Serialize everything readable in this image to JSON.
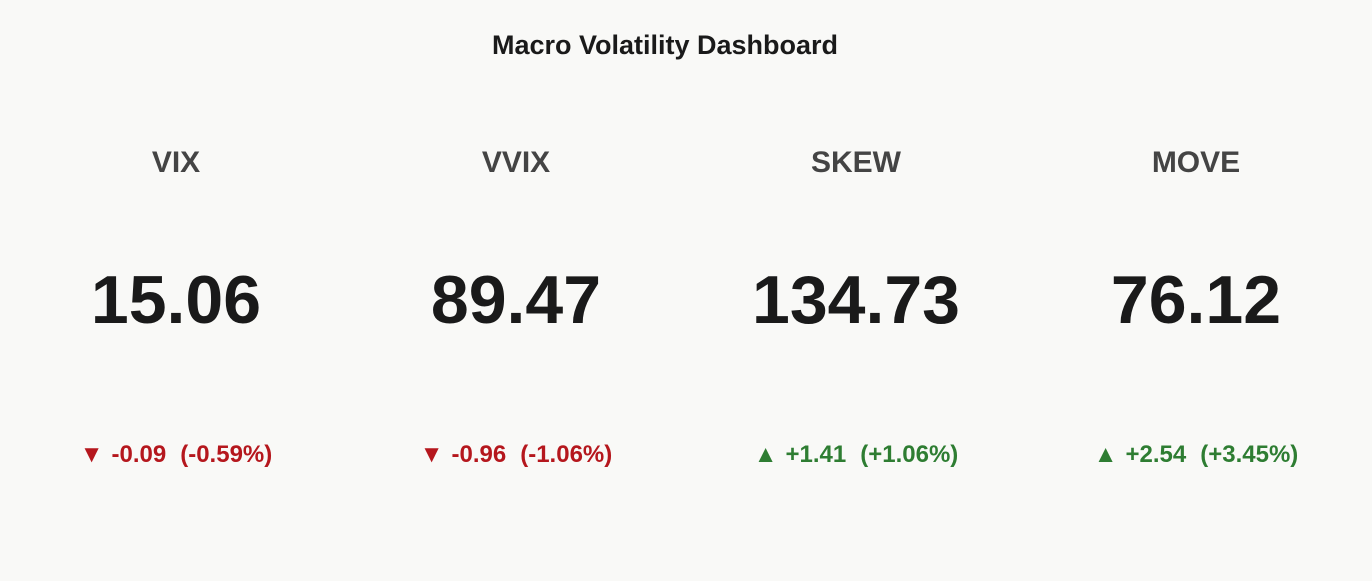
{
  "title": "Macro Volatility Dashboard",
  "indicators": [
    {
      "name": "VIX",
      "value": "15.06",
      "symbol": "▼",
      "delta": "-0.09",
      "delta_pct": "(-0.59%)",
      "color": "#b5171d"
    },
    {
      "name": "VVIX",
      "value": "89.47",
      "symbol": "▼",
      "delta": "-0.96",
      "delta_pct": "(-1.06%)",
      "color": "#b5171d"
    },
    {
      "name": "SKEW",
      "value": "134.73",
      "symbol": "▲",
      "delta": "+1.41",
      "delta_pct": "(+1.06%)",
      "color": "#2e7d32"
    },
    {
      "name": "MOVE",
      "value": "76.12",
      "symbol": "▲",
      "delta": "+2.54",
      "delta_pct": "(+3.45%)",
      "color": "#2e7d32"
    }
  ]
}
